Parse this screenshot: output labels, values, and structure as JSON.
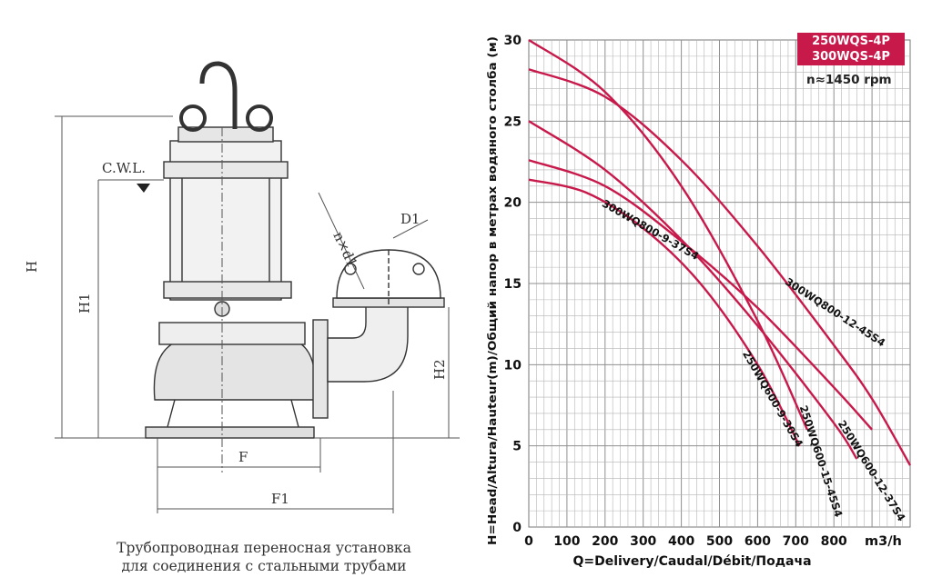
{
  "drawing": {
    "labels": {
      "cwl": "C.W.L.",
      "H": "H",
      "H1": "H1",
      "H2": "H2",
      "F": "F",
      "F1": "F1",
      "D1": "D1",
      "bolts": "n×d1"
    },
    "caption_line1": "Трубопроводная переносная установка",
    "caption_line2": "для соединения с стальными трубами"
  },
  "badge": {
    "line1": "250WQS-4P",
    "line2": "300WQS-4P"
  },
  "speed": "n≈1450 rpm",
  "chart_data": {
    "type": "line",
    "title": "",
    "xlabel": "Q=Delivery/Caudal/Débit/Подача",
    "ylabel": "H=Head/Altura/Hauteur(m)/Общий напор в метрах водяного столба (м)",
    "x_unit": "m3/h",
    "xlim": [
      0,
      1000
    ],
    "ylim": [
      0,
      30
    ],
    "x_ticks": [
      0,
      100,
      200,
      300,
      400,
      500,
      600,
      700,
      800
    ],
    "y_ticks": [
      0,
      5,
      10,
      15,
      20,
      25,
      30
    ],
    "grid": true,
    "colors": {
      "curve": "#c8194b",
      "grid": "#b5b5b5",
      "grid_major": "#8f8f8f"
    },
    "series": [
      {
        "name": "300WQ800-12-45S4",
        "x": [
          0,
          200,
          400,
          600,
          800,
          900,
          1000
        ],
        "y": [
          28.2,
          26.5,
          22.6,
          17.3,
          11.2,
          7.9,
          3.8
        ]
      },
      {
        "name": "300WQ800-9-37S4",
        "x": [
          0,
          200,
          400,
          600,
          800,
          900
        ],
        "y": [
          22.6,
          21.0,
          17.6,
          13.5,
          8.6,
          6.0
        ]
      },
      {
        "name": "250WQ600-9-30S4",
        "x": [
          0,
          150,
          300,
          450,
          600,
          710
        ],
        "y": [
          21.4,
          20.6,
          18.4,
          15.0,
          10.0,
          5.0
        ]
      },
      {
        "name": "250WQ600-15-45S4",
        "x": [
          0,
          200,
          400,
          600,
          730
        ],
        "y": [
          30.0,
          26.8,
          21.0,
          12.7,
          6.0
        ]
      },
      {
        "name": "250WQ600-12-37S4",
        "x": [
          0,
          200,
          400,
          600,
          800,
          860
        ],
        "y": [
          25.0,
          22.0,
          17.7,
          12.4,
          6.4,
          4.2
        ]
      }
    ],
    "annotations": [
      {
        "text": "300WQ800-12-45S4",
        "x": 670,
        "y": 15.0
      },
      {
        "text": "300WQ800-9-37S4",
        "x": 190,
        "y": 19.8
      },
      {
        "text": "250WQ600-9-30S4",
        "x": 560,
        "y": 10.7
      },
      {
        "text": "250WQ600-15-45S4",
        "x": 710,
        "y": 7.4
      },
      {
        "text": "250WQ600-12-37S4",
        "x": 810,
        "y": 6.4
      }
    ]
  }
}
